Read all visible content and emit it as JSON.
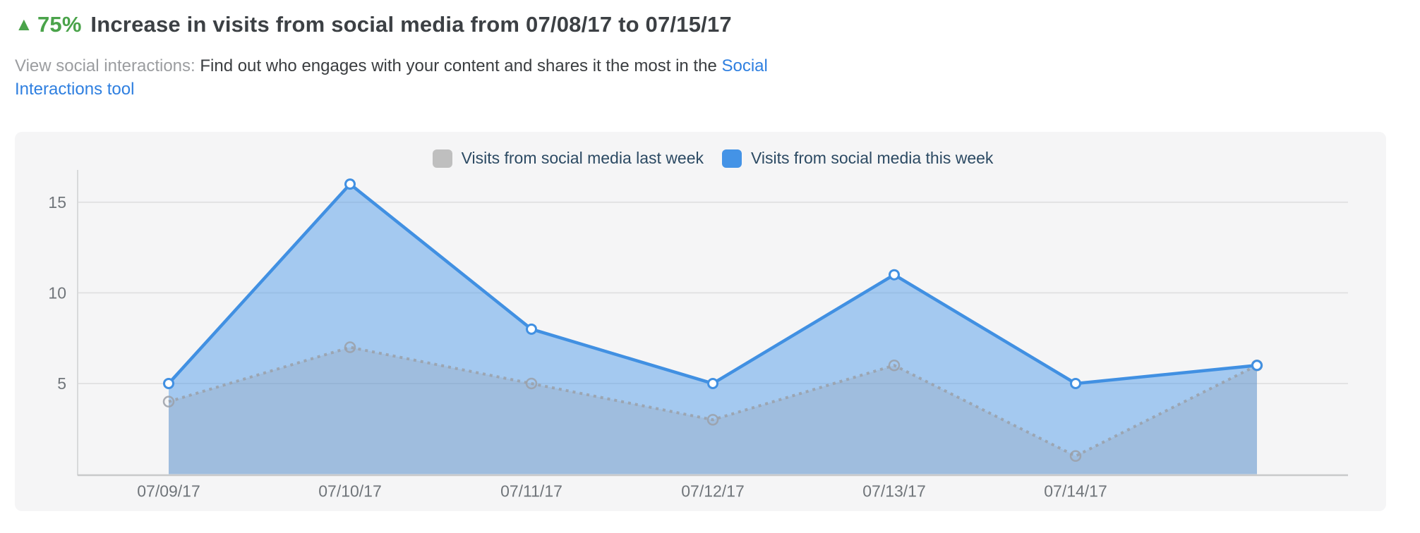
{
  "header": {
    "arrow_icon": "▲",
    "percent": "75%",
    "title_rest": "Increase in visits from social media from 07/08/17 to 07/15/17"
  },
  "subtitle": {
    "label": "View social interactions:",
    "text": " Find out who engages with your content and shares it the most in the ",
    "link": "Social Interactions tool"
  },
  "legend": {
    "items": [
      {
        "label": "Visits from social media last week",
        "color": "#bfbfbf"
      },
      {
        "label": "Visits from social media this week",
        "color": "#4493e6"
      }
    ]
  },
  "chart_data": {
    "type": "area",
    "title": "Visits from social media, week over week",
    "x_labels": [
      "07/09/17",
      "07/10/17",
      "07/11/17",
      "07/12/17",
      "07/13/17",
      "07/14/17"
    ],
    "points_per_series": 7,
    "series": [
      {
        "name": "Visits from social media last week",
        "values": [
          4,
          7,
          5,
          3,
          6,
          1,
          6
        ],
        "line_color": "#9aa0a8",
        "fill_color": "rgba(140,146,158,0.22)",
        "marker": "hollow-circle",
        "line_style": "dotted"
      },
      {
        "name": "Visits from social media this week",
        "values": [
          5,
          16,
          8,
          5,
          11,
          5,
          6
        ],
        "line_color": "#4190e2",
        "fill_color": "rgba(66,149,232,0.45)",
        "marker": "white-circle",
        "line_style": "solid"
      }
    ],
    "y_ticks": [
      5,
      10,
      15
    ],
    "ylim": [
      0,
      17
    ],
    "grid": true,
    "legend_position": "top-center",
    "axis_label_color": "#70757a",
    "grid_color": "#e2e2e3"
  }
}
